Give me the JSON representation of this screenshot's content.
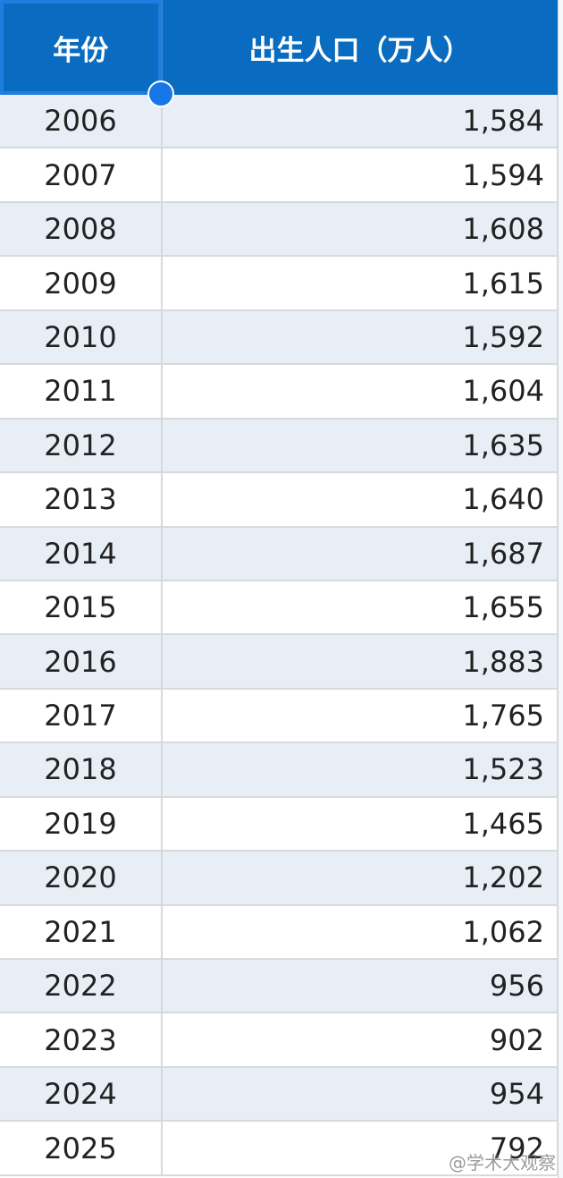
{
  "table": {
    "header": [
      "年份",
      "出生人口（万人）"
    ],
    "rows": [
      [
        "2006",
        "1,584"
      ],
      [
        "2007",
        "1,594"
      ],
      [
        "2008",
        "1,608"
      ],
      [
        "2009",
        "1,615"
      ],
      [
        "2010",
        "1,592"
      ],
      [
        "2011",
        "1,604"
      ],
      [
        "2012",
        "1,635"
      ],
      [
        "2013",
        "1,640"
      ],
      [
        "2014",
        "1,687"
      ],
      [
        "2015",
        "1,655"
      ],
      [
        "2016",
        "1,883"
      ],
      [
        "2017",
        "1,765"
      ],
      [
        "2018",
        "1,523"
      ],
      [
        "2019",
        "1,465"
      ],
      [
        "2020",
        "1,202"
      ],
      [
        "2021",
        "1,062"
      ],
      [
        "2022",
        "956"
      ],
      [
        "2023",
        "902"
      ],
      [
        "2024",
        "954"
      ],
      [
        "2025",
        "792"
      ]
    ]
  },
  "watermark": "@学术大观察"
}
